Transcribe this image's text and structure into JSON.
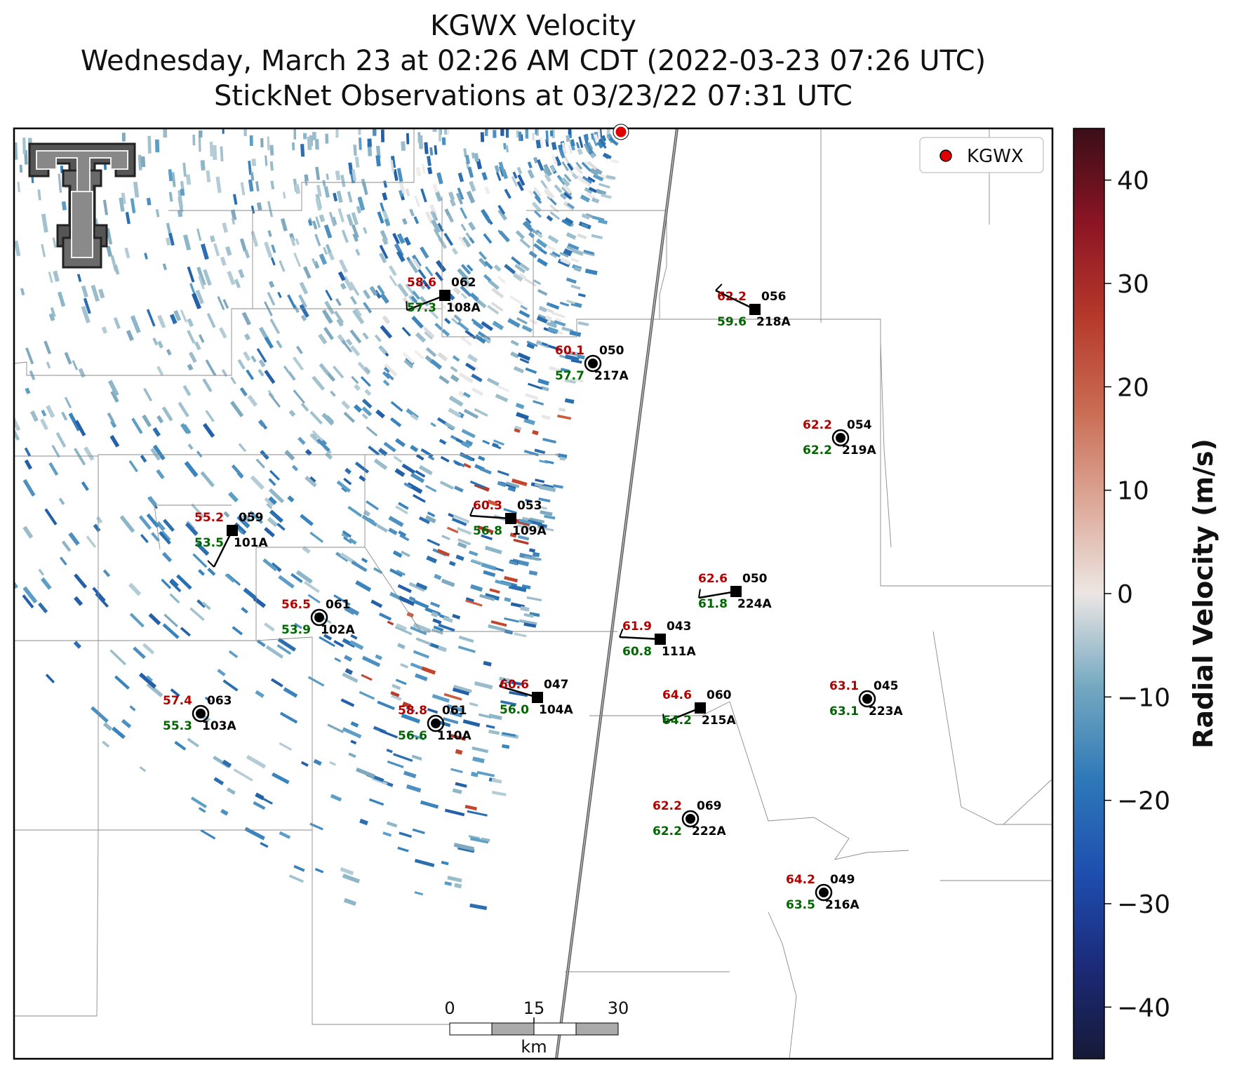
{
  "title": {
    "line1": "KGWX Velocity",
    "line2": "Wednesday, March 23 at 02:26 AM CDT (2022-03-23 07:26 UTC)",
    "line3": "StickNet Observations at 03/23/22 07:31 UTC"
  },
  "legend": {
    "label": "KGWX",
    "marker_color": "#e00000"
  },
  "colorbar": {
    "label": "Radial Velocity (m/s)",
    "range": [
      -45,
      45
    ],
    "ticks": [
      "40",
      "30",
      "20",
      "10",
      "0",
      "−10",
      "−20",
      "−30",
      "−40"
    ],
    "tick_values": [
      40,
      30,
      20,
      10,
      0,
      -10,
      -20,
      -30,
      -40
    ]
  },
  "scale_bar": {
    "labels": [
      "0",
      "15",
      "30"
    ],
    "unit": "km"
  },
  "logo": {
    "name": "texas-tech-double-t-logo"
  },
  "stations": [
    {
      "id": "108A",
      "temp": "58.6",
      "dew": "57.3",
      "dir": "062",
      "marker": "square"
    },
    {
      "id": "218A",
      "temp": "62.2",
      "dew": "59.6",
      "dir": "056",
      "marker": "square"
    },
    {
      "id": "217A",
      "temp": "60.1",
      "dew": "57.7",
      "dir": "050",
      "marker": "circle"
    },
    {
      "id": "219A",
      "temp": "62.2",
      "dew": "62.2",
      "dir": "054",
      "marker": "circle"
    },
    {
      "id": "109A",
      "temp": "60.3",
      "dew": "56.8",
      "dir": "053",
      "marker": "square"
    },
    {
      "id": "101A",
      "temp": "55.2",
      "dew": "53.5",
      "dir": "059",
      "marker": "square"
    },
    {
      "id": "224A",
      "temp": "62.6",
      "dew": "61.8",
      "dir": "050",
      "marker": "square"
    },
    {
      "id": "102A",
      "temp": "56.5",
      "dew": "53.9",
      "dir": "061",
      "marker": "circle"
    },
    {
      "id": "111A",
      "temp": "61.9",
      "dew": "60.8",
      "dir": "043",
      "marker": "square"
    },
    {
      "id": "104A",
      "temp": "60.6",
      "dew": "56.0",
      "dir": "047",
      "marker": "square"
    },
    {
      "id": "223A",
      "temp": "63.1",
      "dew": "63.1",
      "dir": "045",
      "marker": "circle"
    },
    {
      "id": "215A",
      "temp": "64.6",
      "dew": "64.2",
      "dir": "060",
      "marker": "square"
    },
    {
      "id": "103A",
      "temp": "57.4",
      "dew": "55.3",
      "dir": "063",
      "marker": "circle"
    },
    {
      "id": "110A",
      "temp": "58.8",
      "dew": "56.6",
      "dir": "061",
      "marker": "circle"
    },
    {
      "id": "222A",
      "temp": "62.2",
      "dew": "62.2",
      "dir": "069",
      "marker": "circle"
    },
    {
      "id": "216A",
      "temp": "64.2",
      "dew": "63.5",
      "dir": "049",
      "marker": "circle"
    }
  ]
}
